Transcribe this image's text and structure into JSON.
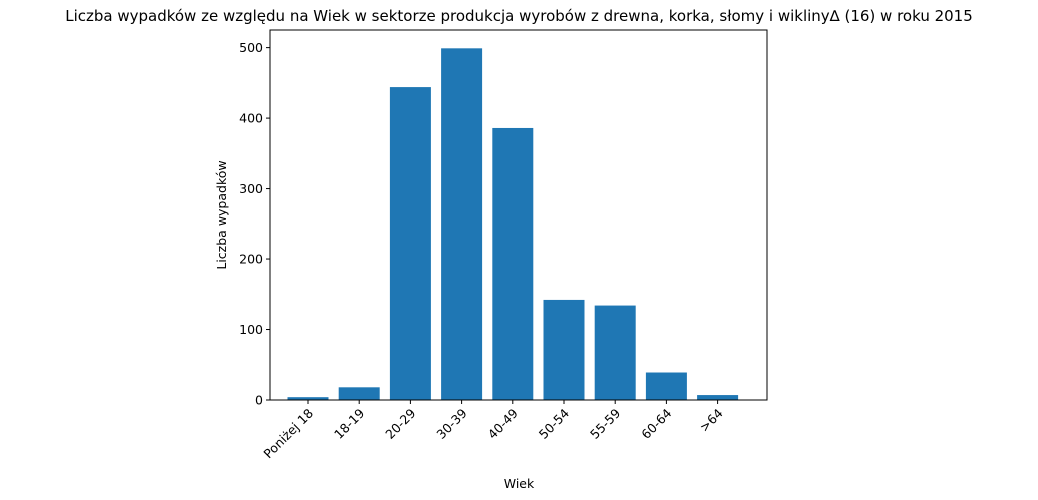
{
  "chart_data": {
    "type": "bar",
    "title": "Liczba wypadków ze względu na Wiek w sektorze produkcja wyrobów z drewna, korka, słomy i wikliny∆ (16)  w roku 2015",
    "xlabel": "Wiek",
    "ylabel": "Liczba wypadków",
    "categories": [
      "Poniżej 18",
      "18-19",
      "20-29",
      "30-39",
      "40-49",
      "50-54",
      "55-59",
      "60-64",
      ">64"
    ],
    "values": [
      4,
      18,
      444,
      499,
      386,
      142,
      134,
      39,
      7
    ],
    "ylim": [
      0,
      525
    ],
    "yticks": [
      0,
      100,
      200,
      300,
      400,
      500
    ],
    "bar_color": "#1f77b4",
    "grid": false,
    "legend": "none"
  }
}
